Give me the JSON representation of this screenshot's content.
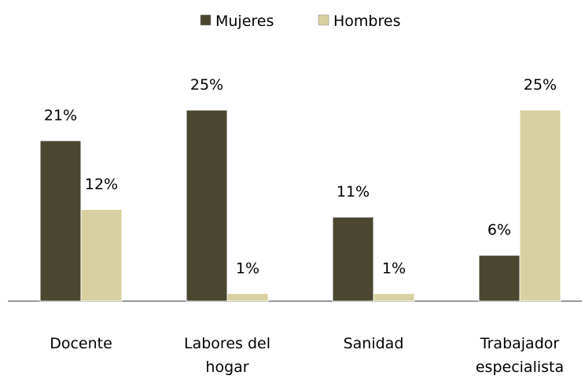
{
  "chart_data": {
    "type": "bar",
    "categories": [
      "Docente",
      "Labores del hogar",
      "Sanidad",
      "Trabajador especialista"
    ],
    "series": [
      {
        "name": "Mujeres",
        "color": "#4a4630",
        "values": [
          21,
          25,
          11,
          6
        ],
        "value_labels": [
          "21%",
          "25%",
          "11%",
          "6%"
        ]
      },
      {
        "name": "Hombres",
        "color": "#d8d0a0",
        "values": [
          12,
          1,
          1,
          25
        ],
        "value_labels": [
          "12%",
          "1%",
          "1%",
          "25%"
        ]
      }
    ],
    "legend": "top"
  }
}
